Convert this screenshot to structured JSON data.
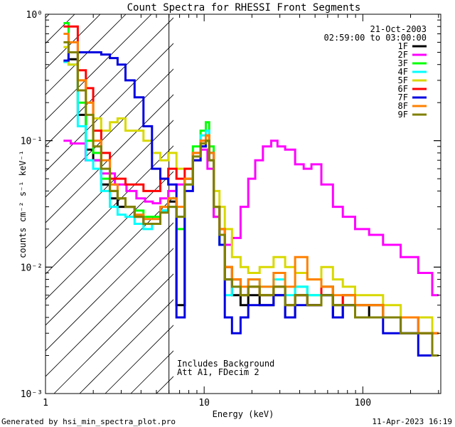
{
  "chart_data": {
    "type": "line",
    "title": "Count Spectra for RHESSI Front Segments",
    "xlabel": "Energy (keV)",
    "ylabel": "counts cm⁻² s⁻¹ keV⁻¹",
    "xscale": "log",
    "yscale": "log",
    "xlim": [
      1,
      310
    ],
    "ylim": [
      0.001,
      1
    ],
    "x_tick_labels": [
      "1",
      "10",
      "100"
    ],
    "y_tick_labels": [
      "10⁻³",
      "10⁻²",
      "10⁻¹",
      "10⁰"
    ],
    "date": "21-Oct-2003",
    "time_range": "02:59:00 to 03:00:00",
    "attenuator_boundary_kev": 6,
    "annotation_lines": [
      "Includes Background",
      "Att A1, FDecim 2"
    ],
    "footer_left": "Generated by hsi_min_spectra_plot.pro",
    "footer_right": "11-Apr-2023 16:19",
    "series": [
      {
        "name": "1F",
        "color": "#000000",
        "x": [
          1.3,
          1.5,
          1.7,
          1.9,
          2.1,
          2.4,
          2.7,
          3.0,
          3.4,
          3.9,
          4.4,
          5.0,
          5.6,
          6.3,
          7.1,
          8.0,
          9.0,
          10.0,
          10.5,
          11.0,
          12,
          13,
          14,
          16,
          18,
          20,
          25,
          30,
          35,
          40,
          50,
          60,
          70,
          80,
          100,
          120,
          150,
          200,
          250,
          300
        ],
        "y": [
          0.42,
          0.44,
          0.16,
          0.085,
          0.07,
          0.045,
          0.035,
          0.03,
          0.03,
          0.025,
          0.022,
          0.022,
          0.028,
          0.033,
          0.005,
          0.05,
          0.07,
          0.09,
          0.1,
          0.07,
          0.025,
          0.015,
          0.008,
          0.006,
          0.005,
          0.006,
          0.005,
          0.006,
          0.004,
          0.006,
          0.005,
          0.006,
          0.004,
          0.005,
          0.004,
          0.005,
          0.004,
          0.003,
          0.003,
          0.002
        ]
      },
      {
        "name": "2F",
        "color": "#ff00ff",
        "x": [
          1.3,
          1.6,
          2.0,
          2.5,
          3.0,
          3.5,
          4.0,
          4.5,
          5.0,
          5.6,
          6.3,
          7.1,
          8.0,
          9.0,
          10.0,
          11.0,
          12,
          13,
          14,
          16,
          18,
          20,
          22,
          25,
          28,
          30,
          35,
          40,
          45,
          50,
          60,
          70,
          80,
          100,
          120,
          150,
          200,
          250,
          300
        ],
        "y": [
          0.1,
          0.095,
          0.07,
          0.055,
          0.045,
          0.04,
          0.035,
          0.033,
          0.032,
          0.035,
          0.04,
          0.045,
          0.05,
          0.07,
          0.085,
          0.06,
          0.025,
          0.018,
          0.015,
          0.017,
          0.03,
          0.05,
          0.07,
          0.09,
          0.1,
          0.09,
          0.085,
          0.065,
          0.06,
          0.065,
          0.045,
          0.03,
          0.025,
          0.02,
          0.018,
          0.015,
          0.012,
          0.009,
          0.006
        ]
      },
      {
        "name": "3F",
        "color": "#00ff00",
        "x": [
          1.3,
          1.5,
          1.7,
          1.9,
          2.1,
          2.4,
          2.7,
          3.0,
          3.4,
          3.9,
          4.4,
          5.0,
          5.6,
          6.3,
          7.1,
          8.0,
          9.0,
          10.0,
          10.5,
          11.0,
          12,
          13,
          14,
          16,
          18,
          20,
          25,
          30,
          35,
          40,
          50,
          60,
          70,
          80,
          100,
          120,
          150,
          200,
          250,
          300
        ],
        "y": [
          0.85,
          0.5,
          0.2,
          0.1,
          0.08,
          0.05,
          0.04,
          0.035,
          0.03,
          0.028,
          0.025,
          0.025,
          0.03,
          0.035,
          0.02,
          0.05,
          0.09,
          0.12,
          0.14,
          0.09,
          0.03,
          0.02,
          0.01,
          0.008,
          0.006,
          0.007,
          0.006,
          0.007,
          0.005,
          0.007,
          0.006,
          0.007,
          0.005,
          0.006,
          0.005,
          0.005,
          0.004,
          0.004,
          0.004,
          0.003
        ]
      },
      {
        "name": "4F",
        "color": "#00ffff",
        "x": [
          1.3,
          1.5,
          1.7,
          1.9,
          2.1,
          2.4,
          2.7,
          3.0,
          3.4,
          3.9,
          4.4,
          5.0,
          5.6,
          6.3,
          7.1,
          8.0,
          9.0,
          10.0,
          10.5,
          11.0,
          12,
          13,
          14,
          16,
          18,
          20,
          25,
          30,
          35,
          40,
          50,
          60,
          70,
          80,
          100,
          120,
          150,
          200,
          250,
          300
        ],
        "y": [
          0.42,
          0.4,
          0.13,
          0.07,
          0.06,
          0.04,
          0.03,
          0.026,
          0.025,
          0.022,
          0.02,
          0.022,
          0.028,
          0.03,
          0.025,
          0.045,
          0.08,
          0.11,
          0.12,
          0.08,
          0.03,
          0.015,
          0.006,
          0.007,
          0.006,
          0.008,
          0.007,
          0.008,
          0.006,
          0.007,
          0.006,
          0.007,
          0.005,
          0.006,
          0.005,
          0.005,
          0.004,
          0.004,
          0.003,
          0.003
        ]
      },
      {
        "name": "5F",
        "color": "#d8d800",
        "x": [
          1.3,
          1.5,
          1.7,
          1.9,
          2.1,
          2.4,
          2.7,
          3.0,
          3.4,
          3.9,
          4.4,
          5.0,
          5.6,
          6.3,
          7.1,
          8.0,
          9.0,
          10.0,
          10.5,
          11.0,
          12,
          13,
          14,
          16,
          18,
          20,
          25,
          30,
          35,
          40,
          50,
          60,
          70,
          80,
          100,
          120,
          150,
          200,
          250,
          300
        ],
        "y": [
          0.55,
          0.4,
          0.3,
          0.2,
          0.15,
          0.12,
          0.14,
          0.15,
          0.12,
          0.12,
          0.1,
          0.08,
          0.07,
          0.08,
          0.06,
          0.06,
          0.07,
          0.09,
          0.1,
          0.08,
          0.04,
          0.03,
          0.02,
          0.012,
          0.01,
          0.009,
          0.01,
          0.012,
          0.01,
          0.009,
          0.008,
          0.01,
          0.008,
          0.007,
          0.006,
          0.006,
          0.005,
          0.004,
          0.004,
          0.003
        ]
      },
      {
        "name": "6F",
        "color": "#ff0000",
        "x": [
          1.3,
          1.5,
          1.7,
          1.9,
          2.1,
          2.4,
          2.7,
          3.0,
          3.4,
          3.9,
          4.4,
          5.0,
          5.6,
          6.3,
          7.1,
          8.0,
          9.0,
          10.0,
          10.5,
          11.0,
          12,
          13,
          14,
          16,
          18,
          20,
          25,
          30,
          35,
          40,
          50,
          60,
          70,
          80,
          100,
          120,
          150,
          200,
          250,
          300
        ],
        "y": [
          0.8,
          0.8,
          0.36,
          0.26,
          0.12,
          0.08,
          0.05,
          0.05,
          0.045,
          0.045,
          0.04,
          0.04,
          0.05,
          0.06,
          0.05,
          0.06,
          0.08,
          0.1,
          0.11,
          0.08,
          0.03,
          0.02,
          0.01,
          0.008,
          0.006,
          0.007,
          0.006,
          0.007,
          0.005,
          0.006,
          0.005,
          0.007,
          0.005,
          0.006,
          0.005,
          0.005,
          0.004,
          0.004,
          0.003,
          0.003
        ]
      },
      {
        "name": "7F",
        "color": "#0000e0",
        "x": [
          1.3,
          1.5,
          1.7,
          1.9,
          2.1,
          2.4,
          2.7,
          3.0,
          3.4,
          3.9,
          4.4,
          5.0,
          5.6,
          6.3,
          7.1,
          8.0,
          9.0,
          10.0,
          10.5,
          11.0,
          12,
          13,
          14,
          16,
          18,
          20,
          25,
          30,
          35,
          40,
          50,
          60,
          70,
          80,
          100,
          120,
          150,
          200,
          250,
          300
        ],
        "y": [
          0.43,
          0.5,
          0.5,
          0.5,
          0.5,
          0.48,
          0.45,
          0.4,
          0.3,
          0.22,
          0.13,
          0.06,
          0.05,
          0.045,
          0.004,
          0.04,
          0.07,
          0.09,
          0.1,
          0.08,
          0.03,
          0.015,
          0.004,
          0.003,
          0.004,
          0.005,
          0.005,
          0.006,
          0.004,
          0.005,
          0.005,
          0.006,
          0.004,
          0.005,
          0.004,
          0.004,
          0.003,
          0.003,
          0.002,
          0.002
        ]
      },
      {
        "name": "8F",
        "color": "#ff8000",
        "x": [
          1.3,
          1.5,
          1.7,
          1.9,
          2.1,
          2.4,
          2.7,
          3.0,
          3.4,
          3.9,
          4.4,
          5.0,
          5.6,
          6.3,
          7.1,
          8.0,
          9.0,
          10.0,
          10.5,
          11.0,
          12,
          13,
          14,
          16,
          18,
          20,
          25,
          30,
          35,
          40,
          50,
          60,
          70,
          80,
          100,
          120,
          150,
          200,
          250,
          300
        ],
        "y": [
          0.7,
          0.6,
          0.3,
          0.2,
          0.1,
          0.07,
          0.045,
          0.035,
          0.03,
          0.026,
          0.024,
          0.024,
          0.03,
          0.035,
          0.03,
          0.05,
          0.08,
          0.1,
          0.11,
          0.08,
          0.03,
          0.02,
          0.01,
          0.008,
          0.007,
          0.008,
          0.007,
          0.009,
          0.007,
          0.012,
          0.008,
          0.007,
          0.006,
          0.006,
          0.005,
          0.005,
          0.004,
          0.004,
          0.003,
          0.003
        ]
      },
      {
        "name": "9F",
        "color": "#808000",
        "x": [
          1.3,
          1.5,
          1.7,
          1.9,
          2.1,
          2.4,
          2.7,
          3.0,
          3.4,
          3.9,
          4.4,
          5.0,
          5.6,
          6.3,
          7.1,
          8.0,
          9.0,
          10.0,
          10.5,
          11.0,
          12,
          13,
          14,
          16,
          18,
          20,
          25,
          30,
          35,
          40,
          50,
          60,
          70,
          80,
          100,
          120,
          150,
          200,
          250,
          300
        ],
        "y": [
          0.6,
          0.5,
          0.25,
          0.16,
          0.09,
          0.06,
          0.04,
          0.035,
          0.03,
          0.025,
          0.022,
          0.022,
          0.027,
          0.03,
          0.025,
          0.045,
          0.075,
          0.095,
          0.1,
          0.07,
          0.03,
          0.018,
          0.008,
          0.007,
          0.006,
          0.007,
          0.006,
          0.007,
          0.005,
          0.006,
          0.005,
          0.006,
          0.005,
          0.005,
          0.004,
          0.004,
          0.004,
          0.003,
          0.003,
          0.002
        ]
      }
    ]
  }
}
